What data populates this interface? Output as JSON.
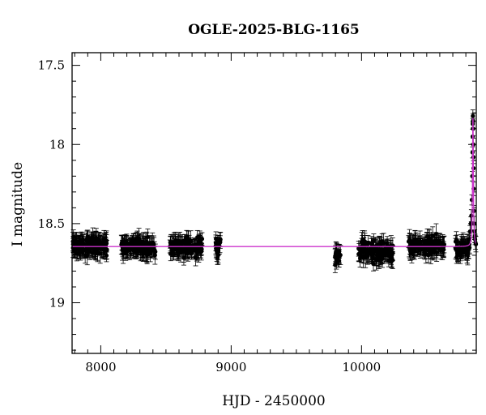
{
  "chart_data": {
    "type": "scatter",
    "title": "OGLE-2025-BLG-1165",
    "xlabel": "HJD - 2450000",
    "ylabel": "I magnitude",
    "xlim": [
      7780,
      10880
    ],
    "ylim": [
      19.32,
      17.42
    ],
    "y_inverted": true,
    "x_ticks": [
      8000,
      9000,
      10000
    ],
    "y_ticks": [
      17.5,
      18,
      18.5,
      19
    ],
    "x_tick_labels": [
      "8000",
      "9000",
      "10000"
    ],
    "y_tick_labels": [
      "17.5",
      "18",
      "18.5",
      "19"
    ],
    "grid": false,
    "colors": {
      "points": "#000000",
      "model": "#cc33cc"
    },
    "seasons": [
      {
        "x_range": [
          7785,
          8050
        ],
        "mag_mean": 18.64,
        "mag_scatter": 0.05,
        "points_per_100d": 55
      },
      {
        "x_range": [
          8150,
          8420
        ],
        "mag_mean": 18.65,
        "mag_scatter": 0.05,
        "points_per_100d": 45
      },
      {
        "x_range": [
          8530,
          8780
        ],
        "mag_mean": 18.64,
        "mag_scatter": 0.05,
        "points_per_100d": 45
      },
      {
        "x_range": [
          8880,
          8920
        ],
        "mag_mean": 18.65,
        "mag_scatter": 0.05,
        "points_per_100d": 60
      },
      {
        "x_range": [
          9795,
          9840
        ],
        "mag_mean": 18.7,
        "mag_scatter": 0.05,
        "points_per_100d": 40
      },
      {
        "x_range": [
          9975,
          10240
        ],
        "mag_mean": 18.68,
        "mag_scatter": 0.06,
        "points_per_100d": 45
      },
      {
        "x_range": [
          10360,
          10640
        ],
        "mag_mean": 18.64,
        "mag_scatter": 0.05,
        "points_per_100d": 45
      },
      {
        "x_range": [
          10720,
          10830
        ],
        "mag_mean": 18.66,
        "mag_scatter": 0.05,
        "points_per_100d": 50
      }
    ],
    "event_points": [
      {
        "x": 10825,
        "y": 18.6
      },
      {
        "x": 10832,
        "y": 18.55
      },
      {
        "x": 10838,
        "y": 18.5
      },
      {
        "x": 10842,
        "y": 18.45
      },
      {
        "x": 10846,
        "y": 18.35
      },
      {
        "x": 10849,
        "y": 18.2
      },
      {
        "x": 10851,
        "y": 18.05
      },
      {
        "x": 10852,
        "y": 17.95
      },
      {
        "x": 10853,
        "y": 17.87
      },
      {
        "x": 10854,
        "y": 17.82
      },
      {
        "x": 10855,
        "y": 17.85
      },
      {
        "x": 10856,
        "y": 17.9
      },
      {
        "x": 10857,
        "y": 18.0
      },
      {
        "x": 10858,
        "y": 18.08
      },
      {
        "x": 10859,
        "y": 18.15
      },
      {
        "x": 10860,
        "y": 18.28
      },
      {
        "x": 10862,
        "y": 18.42
      },
      {
        "x": 10864,
        "y": 18.5
      },
      {
        "x": 10866,
        "y": 18.55
      },
      {
        "x": 10868,
        "y": 18.58
      },
      {
        "x": 10871,
        "y": 18.6
      },
      {
        "x": 10874,
        "y": 18.62
      },
      {
        "x": 10877,
        "y": 18.63
      }
    ],
    "model": {
      "baseline_mag": 18.645,
      "peak_x": 10854.5,
      "peak_mag": 17.82,
      "width_days": 3.5
    }
  }
}
